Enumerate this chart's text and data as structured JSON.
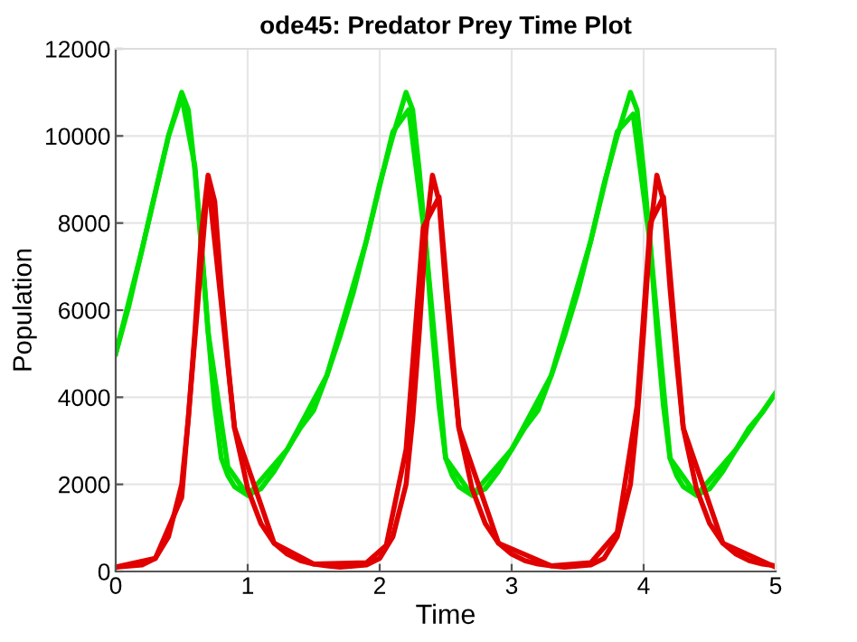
{
  "chart_data": {
    "type": "line",
    "title": "ode45: Predator Prey Time Plot",
    "xlabel": "Time",
    "ylabel": "Population",
    "xlim": [
      0,
      5
    ],
    "ylim": [
      0,
      12000
    ],
    "xticks": [
      0,
      1,
      2,
      3,
      4,
      5
    ],
    "yticks": [
      0,
      2000,
      4000,
      6000,
      8000,
      10000,
      12000
    ],
    "grid": true,
    "line_style": "solid",
    "marker": "none",
    "series": [
      {
        "color": "#00e000",
        "x": [
          0,
          0.1,
          0.2,
          0.3,
          0.4,
          0.5,
          0.55,
          0.6,
          0.65,
          0.7,
          0.75,
          0.8,
          0.85,
          0.9,
          1.0,
          1.1,
          1.2,
          1.3,
          1.4,
          1.5,
          1.6,
          1.7,
          1.8,
          1.9,
          2.0,
          2.1,
          2.2,
          2.25,
          2.3,
          2.35,
          2.4,
          2.45,
          2.5,
          2.55,
          2.6,
          2.7,
          2.8,
          2.9,
          3.0,
          3.1,
          3.2,
          3.3,
          3.4,
          3.5,
          3.6,
          3.7,
          3.8,
          3.9,
          3.95,
          4.0,
          4.05,
          4.1,
          4.15,
          4.2,
          4.25,
          4.3,
          4.4,
          4.5,
          4.6,
          4.7,
          4.8,
          4.9,
          5.0
        ],
        "values": [
          5000,
          6100,
          7400,
          8700,
          10000,
          11000,
          10600,
          9200,
          7500,
          5500,
          3800,
          2600,
          2200,
          1950,
          1750,
          1900,
          2300,
          2800,
          3300,
          3700,
          4500,
          5400,
          6400,
          7600,
          8900,
          10000,
          11000,
          10600,
          9200,
          7500,
          5500,
          3800,
          2600,
          2200,
          1950,
          1750,
          1900,
          2300,
          2800,
          3300,
          3700,
          4500,
          5400,
          6400,
          7600,
          8900,
          10000,
          11000,
          10600,
          9200,
          7500,
          5500,
          3800,
          2600,
          2200,
          1950,
          1750,
          1900,
          2300,
          2800,
          3300,
          3650,
          4100
        ]
      },
      {
        "color": "#00e000",
        "x": [
          0,
          0.2,
          0.4,
          0.5,
          0.6,
          0.7,
          0.85,
          1.0,
          1.3,
          1.6,
          1.9,
          2.1,
          2.22,
          2.35,
          2.5,
          2.7,
          3.0,
          3.3,
          3.6,
          3.8,
          3.92,
          4.05,
          4.2,
          4.4,
          4.7,
          5.0
        ],
        "values": [
          5000,
          7400,
          10000,
          10900,
          9300,
          5500,
          2400,
          1750,
          2800,
          4500,
          7600,
          10100,
          10600,
          7500,
          2600,
          1750,
          2800,
          4500,
          7600,
          10100,
          10500,
          7500,
          2600,
          1750,
          2800,
          4100
        ]
      },
      {
        "color": "#e00000",
        "x": [
          0,
          0.2,
          0.3,
          0.4,
          0.5,
          0.55,
          0.6,
          0.65,
          0.7,
          0.75,
          0.8,
          0.85,
          0.9,
          1.0,
          1.1,
          1.2,
          1.3,
          1.4,
          1.5,
          1.6,
          1.7,
          1.9,
          2.0,
          2.1,
          2.2,
          2.25,
          2.3,
          2.35,
          2.4,
          2.45,
          2.5,
          2.55,
          2.6,
          2.7,
          2.8,
          2.9,
          3.0,
          3.1,
          3.2,
          3.3,
          3.4,
          3.6,
          3.7,
          3.8,
          3.9,
          3.95,
          4.0,
          4.05,
          4.1,
          4.15,
          4.2,
          4.25,
          4.3,
          4.4,
          4.5,
          4.6,
          4.7,
          4.8,
          4.9,
          5.0
        ],
        "values": [
          100,
          150,
          300,
          800,
          2000,
          3500,
          5500,
          7800,
          9100,
          8500,
          6500,
          4800,
          3300,
          1900,
          1100,
          650,
          400,
          250,
          170,
          130,
          100,
          150,
          300,
          800,
          2000,
          3500,
          5500,
          7800,
          9100,
          8500,
          6500,
          4800,
          3300,
          1900,
          1100,
          650,
          400,
          250,
          170,
          130,
          100,
          150,
          300,
          800,
          2000,
          3500,
          5500,
          7800,
          9100,
          8500,
          6500,
          4800,
          3300,
          1900,
          1100,
          650,
          400,
          250,
          170,
          130
        ]
      },
      {
        "color": "#e00000",
        "x": [
          0,
          0.3,
          0.5,
          0.7,
          0.9,
          1.2,
          1.5,
          1.9,
          2.05,
          2.2,
          2.33,
          2.45,
          2.6,
          2.9,
          3.3,
          3.6,
          3.8,
          3.95,
          4.05,
          4.15,
          4.3,
          4.6,
          5.0
        ],
        "values": [
          100,
          300,
          1700,
          9000,
          3300,
          650,
          170,
          200,
          600,
          2800,
          7900,
          8600,
          3300,
          650,
          130,
          200,
          900,
          3800,
          8000,
          8600,
          3300,
          650,
          100
        ]
      }
    ]
  }
}
